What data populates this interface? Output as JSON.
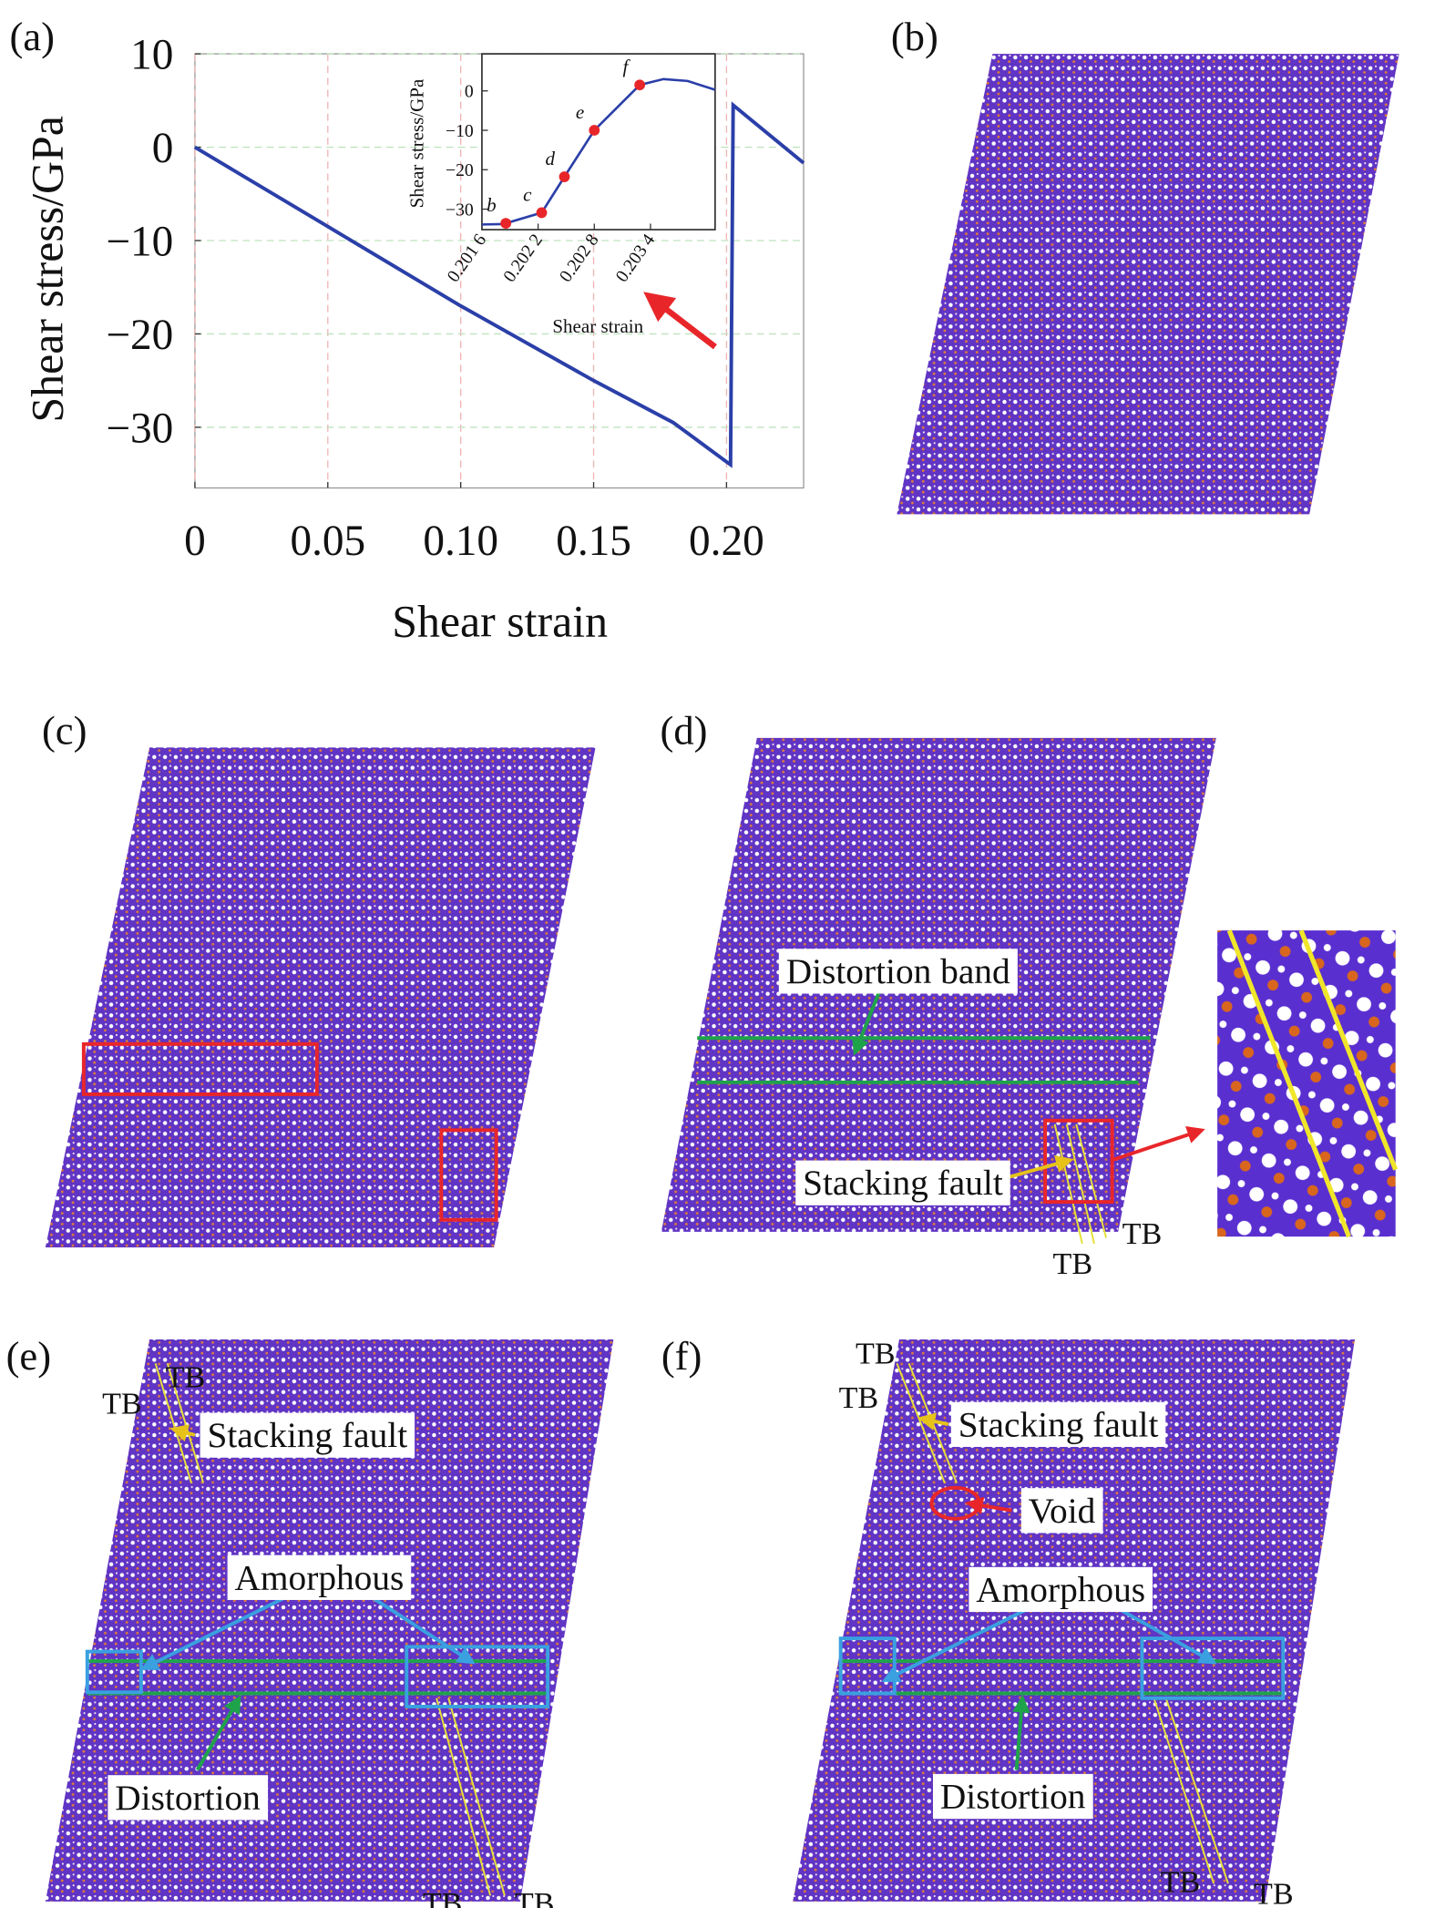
{
  "chart_data": [
    {
      "type": "line",
      "panel_label": "(a)",
      "xlabel": "Shear strain",
      "ylabel": "Shear stress/GPa",
      "x": [
        0,
        0.05,
        0.1,
        0.15,
        0.18,
        0.2,
        0.2015,
        0.2025,
        0.229
      ],
      "values": [
        0,
        -8.5,
        -17,
        -25,
        -29.5,
        -33.7,
        -34,
        4.5,
        -1.7
      ],
      "color": "#2b3fa8",
      "xlim": [
        0,
        0.229
      ],
      "ylim": [
        -36.5,
        10
      ],
      "xticks": [
        0,
        0.05,
        {
          "value": 0.1,
          "label": "0.10"
        },
        0.15,
        {
          "value": 0.2,
          "label": "0.20"
        }
      ],
      "yticks": [
        10,
        0,
        {
          "value": -10,
          "label": "−10"
        },
        {
          "value": -20,
          "label": "−20"
        },
        {
          "value": -30,
          "label": "−30"
        }
      ],
      "grid": true
    },
    {
      "type": "line",
      "xlabel": "Shear strain",
      "ylabel": "Shear stress/GPa",
      "x": [
        0.2016,
        0.201817,
        0.201855,
        0.202238,
        0.202481,
        0.2028,
        0.203285,
        0.20354,
        0.203796,
        0.204089
      ],
      "values": [
        -33.9,
        -33.8,
        -33.6,
        -30.9,
        -21.8,
        -10,
        1.5,
        3,
        2.5,
        0.3
      ],
      "color": "#2b3fa8",
      "markers": {
        "x": [
          0.201855,
          0.202238,
          0.202481,
          0.2028,
          0.203285
        ],
        "values": [
          -33.6,
          -30.9,
          -21.8,
          -10,
          1.5
        ],
        "labels": [
          "b",
          "c",
          "d",
          "e",
          "f"
        ],
        "color": "#e8262a"
      },
      "xlim": [
        0.2016,
        0.20409
      ],
      "ylim": [
        -35.2,
        9.4
      ],
      "xticks": [
        {
          "value": 0.2016,
          "label": "0.201 6"
        },
        {
          "value": 0.2022,
          "label": "0.202 2"
        },
        {
          "value": 0.2028,
          "label": "0.202 8"
        },
        {
          "value": 0.2034,
          "label": "0.203 4"
        }
      ],
      "yticks": [
        0,
        {
          "value": -10,
          "label": "−10"
        },
        {
          "value": -20,
          "label": "−20"
        },
        {
          "value": -30,
          "label": "−30"
        }
      ],
      "grid": false
    }
  ],
  "panels": [
    {
      "label": "(b)",
      "annotations": []
    },
    {
      "label": "(c)",
      "annotations": []
    },
    {
      "label": "(d)",
      "annotations": [
        "Distortion band",
        "Stacking fault",
        "TB",
        "TB"
      ]
    },
    {
      "label": "(e)",
      "annotations": [
        "TB",
        "TB",
        "Stacking fault",
        "Amorphous",
        "Distortion",
        "TB",
        "TB"
      ]
    },
    {
      "label": "(f)",
      "annotations": [
        "TB",
        "TB",
        "Stacking fault",
        "Void",
        "Amorphous",
        "Distortion",
        "TB",
        "TB"
      ]
    }
  ]
}
